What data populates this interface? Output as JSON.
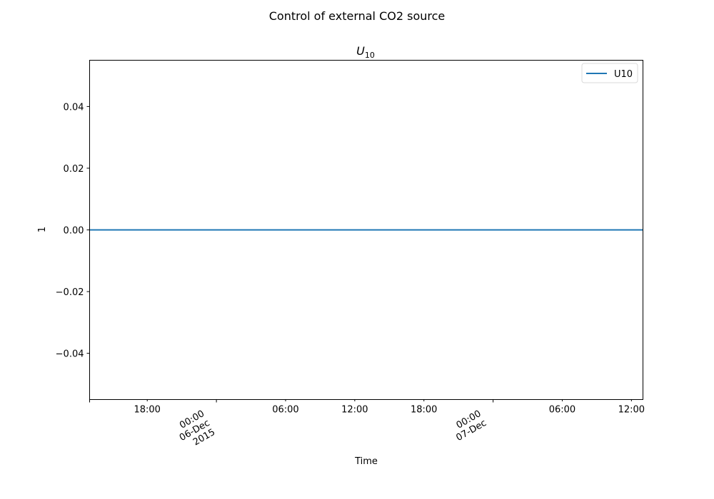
{
  "figure": {
    "suptitle": "Control of external CO2 source"
  },
  "chart_data": {
    "type": "line",
    "title_main": "U",
    "title_sub": "10",
    "xlabel": "Time",
    "ylabel": "1",
    "xlim": [
      "2015-12-05T13:00",
      "2015-12-07T13:00"
    ],
    "ylim": [
      -0.055,
      0.055
    ],
    "grid": false,
    "legend_position": "upper-right",
    "series": [
      {
        "name": "U10",
        "color": "#1f77b4",
        "x": [
          "2015-12-05T13:00",
          "2015-12-07T13:00"
        ],
        "y": [
          0.0,
          0.0
        ]
      }
    ],
    "y_ticks": [
      {
        "value": -0.04,
        "label": "−0.04"
      },
      {
        "value": -0.02,
        "label": "−0.02"
      },
      {
        "value": 0.0,
        "label": "0.00"
      },
      {
        "value": 0.02,
        "label": "0.02"
      },
      {
        "value": 0.04,
        "label": "0.04"
      }
    ],
    "x_major_ticks": [
      {
        "time": "2015-12-06T00:00",
        "lines": [
          "00:00",
          "06-Dec",
          "2015"
        ]
      },
      {
        "time": "2015-12-07T00:00",
        "lines": [
          "00:00",
          "07-Dec"
        ]
      }
    ],
    "x_minor_ticks": [
      {
        "time": "2015-12-05T18:00",
        "label": "18:00"
      },
      {
        "time": "2015-12-06T06:00",
        "label": "06:00"
      },
      {
        "time": "2015-12-06T12:00",
        "label": "12:00"
      },
      {
        "time": "2015-12-06T18:00",
        "label": "18:00"
      },
      {
        "time": "2015-12-07T06:00",
        "label": "06:00"
      },
      {
        "time": "2015-12-07T12:00",
        "label": "12:00"
      }
    ]
  }
}
